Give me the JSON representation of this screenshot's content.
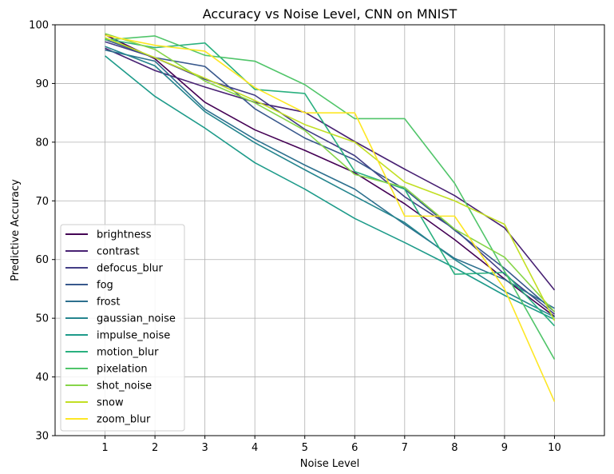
{
  "chart_data": {
    "type": "line",
    "title": "Accuracy vs Noise Level, CNN on MNIST",
    "xlabel": "Noise Level",
    "ylabel": "Predictive Accuracy",
    "x": [
      1,
      2,
      3,
      4,
      5,
      6,
      7,
      8,
      9,
      10
    ],
    "xlim": [
      0,
      11
    ],
    "ylim": [
      30,
      100
    ],
    "yticks": [
      30,
      40,
      50,
      60,
      70,
      80,
      90,
      100
    ],
    "grid": true,
    "legend_position": "lower-left",
    "series": [
      {
        "name": "brightness",
        "color": "#440154",
        "values": [
          98.3,
          94.2,
          86.8,
          82.1,
          78.6,
          74.8,
          69.5,
          63.4,
          56.7,
          50.3
        ]
      },
      {
        "name": "contrast",
        "color": "#482173",
        "values": [
          96.0,
          92.2,
          89.4,
          86.8,
          85.1,
          80.1,
          75.4,
          70.9,
          65.4,
          54.8
        ]
      },
      {
        "name": "defocus_blur",
        "color": "#433e85",
        "values": [
          97.1,
          94.4,
          90.7,
          88.0,
          82.2,
          77.7,
          70.7,
          65.2,
          57.5,
          50.7
        ]
      },
      {
        "name": "fog",
        "color": "#38588c",
        "values": [
          97.5,
          94.4,
          92.9,
          85.7,
          80.7,
          77.0,
          72.0,
          65.0,
          58.5,
          51.1
        ]
      },
      {
        "name": "frost",
        "color": "#2d708e",
        "values": [
          95.7,
          93.8,
          85.6,
          80.5,
          76.1,
          72.0,
          66.0,
          60.2,
          56.6,
          51.7
        ]
      },
      {
        "name": "gaussian_noise",
        "color": "#25858e",
        "values": [
          96.3,
          93.0,
          85.2,
          79.9,
          75.3,
          70.8,
          66.3,
          60.0,
          54.6,
          50.2
        ]
      },
      {
        "name": "impulse_noise",
        "color": "#1e9b8a",
        "values": [
          94.7,
          87.8,
          82.4,
          76.5,
          72.0,
          67.0,
          62.9,
          58.6,
          53.9,
          49.8
        ]
      },
      {
        "name": "motion_blur",
        "color": "#2ab07f",
        "values": [
          97.6,
          96.1,
          96.9,
          89.0,
          88.3,
          75.0,
          72.0,
          57.5,
          57.8,
          48.7
        ]
      },
      {
        "name": "pixelation",
        "color": "#51c56a",
        "values": [
          97.4,
          98.1,
          94.8,
          93.8,
          89.8,
          84.0,
          84.0,
          73.0,
          58.0,
          43.0
        ]
      },
      {
        "name": "shot_noise",
        "color": "#86d549",
        "values": [
          98.5,
          95.8,
          90.4,
          86.7,
          82.0,
          74.5,
          72.3,
          65.2,
          60.4,
          51.1
        ]
      },
      {
        "name": "snow",
        "color": "#c2df23",
        "values": [
          97.8,
          94.4,
          90.9,
          87.1,
          83.0,
          80.0,
          73.2,
          70.0,
          66.0,
          49.6
        ]
      },
      {
        "name": "zoom_blur",
        "color": "#fde725",
        "values": [
          98.2,
          96.5,
          95.5,
          89.3,
          85.0,
          85.0,
          67.4,
          67.4,
          55.0,
          35.8
        ]
      }
    ]
  }
}
